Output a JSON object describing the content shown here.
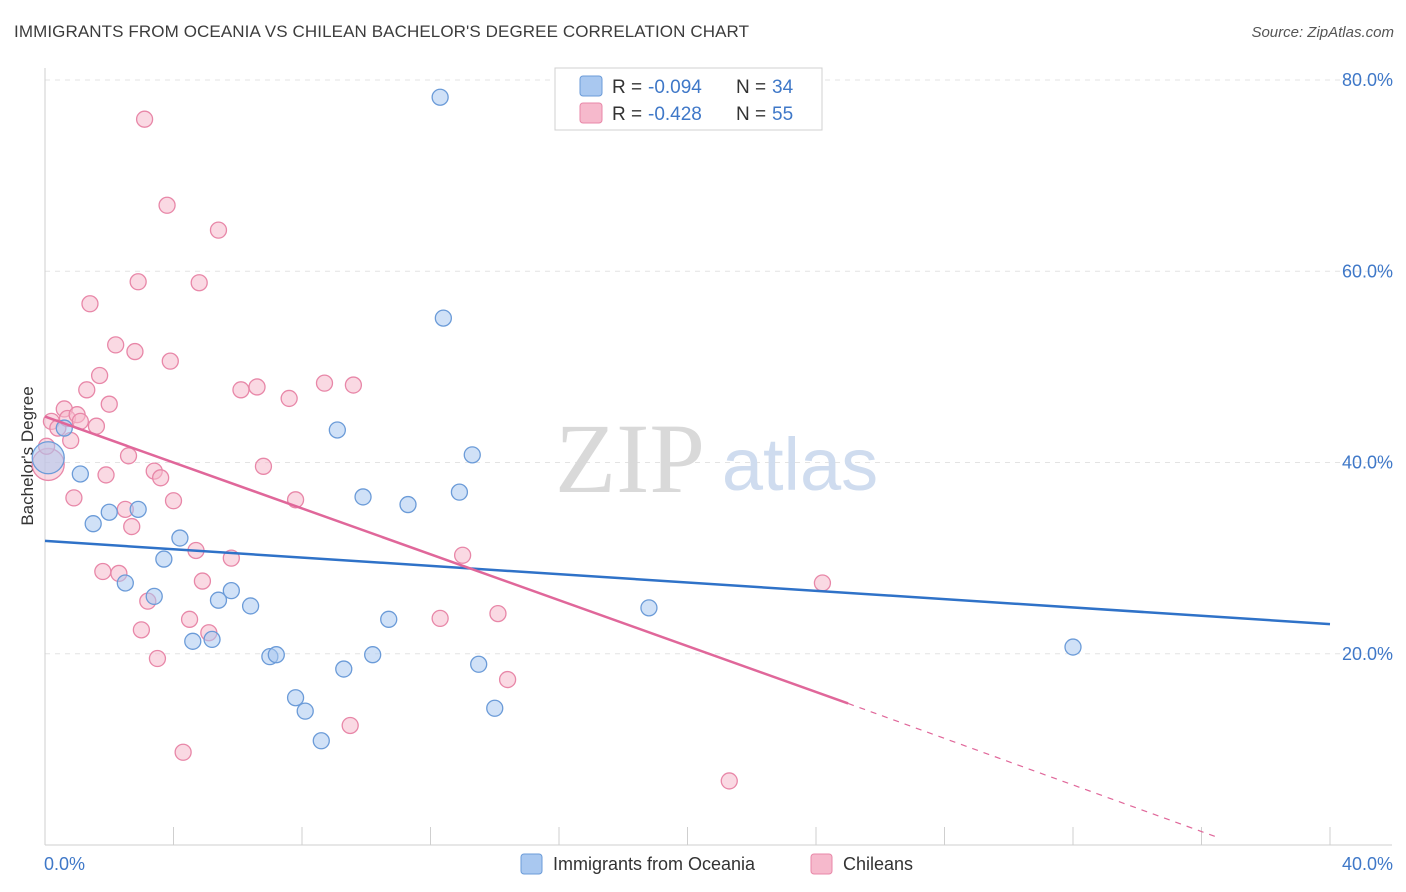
{
  "title": "IMMIGRANTS FROM OCEANIA VS CHILEAN BACHELOR'S DEGREE CORRELATION CHART",
  "source": "Source: ZipAtlas.com",
  "watermark": {
    "zip": "ZIP",
    "atlas": "atlas"
  },
  "colors": {
    "blue_fill": "#a9c8f0",
    "blue_stroke": "#6b9bd8",
    "blue_line": "#2f72c8",
    "pink_fill": "#f6b9cc",
    "pink_stroke": "#e887a8",
    "pink_line": "#e0679a",
    "accent_text": "#3f78c8"
  },
  "legend": {
    "rows": [
      {
        "r_label": "R =",
        "r_value": "-0.094",
        "n_label": "N =",
        "n_value": "34"
      },
      {
        "r_label": "R =",
        "r_value": "-0.428",
        "n_label": "N =",
        "n_value": "55"
      }
    ]
  },
  "bottom_legend": [
    "Immigrants from Oceania",
    "Chileans"
  ],
  "chart_data": {
    "type": "scatter",
    "title": "IMMIGRANTS FROM OCEANIA VS CHILEAN BACHELOR'S DEGREE CORRELATION CHART",
    "xlabel": "",
    "ylabel": "Bachelor's Degree",
    "xlim": [
      0,
      40
    ],
    "ylim": [
      0,
      80
    ],
    "x_tick_labels": [
      "0.0%",
      "40.0%"
    ],
    "y_tick_labels": [
      "20.0%",
      "40.0%",
      "60.0%",
      "80.0%"
    ],
    "y_ticks": [
      20,
      40,
      60,
      80
    ],
    "grid": true,
    "legend_position": "top-center",
    "series": [
      {
        "name": "Immigrants from Oceania",
        "r": -0.094,
        "n": 34,
        "trend": {
          "x": [
            0,
            40
          ],
          "y": [
            31.8,
            23.1
          ]
        },
        "points": [
          [
            0.1,
            40.5
          ],
          [
            0.6,
            43.6
          ],
          [
            1.1,
            38.8
          ],
          [
            1.5,
            33.6
          ],
          [
            2.0,
            34.8
          ],
          [
            2.5,
            27.4
          ],
          [
            2.9,
            35.1
          ],
          [
            3.4,
            26.0
          ],
          [
            3.7,
            29.9
          ],
          [
            4.2,
            32.1
          ],
          [
            4.6,
            21.3
          ],
          [
            5.2,
            21.5
          ],
          [
            5.4,
            25.6
          ],
          [
            5.8,
            26.6
          ],
          [
            6.4,
            25.0
          ],
          [
            7.0,
            19.7
          ],
          [
            7.2,
            19.9
          ],
          [
            7.8,
            15.4
          ],
          [
            8.1,
            14.0
          ],
          [
            8.6,
            10.9
          ],
          [
            9.1,
            43.4
          ],
          [
            9.3,
            18.4
          ],
          [
            9.9,
            36.4
          ],
          [
            10.2,
            19.9
          ],
          [
            10.7,
            23.6
          ],
          [
            11.3,
            35.6
          ],
          [
            12.3,
            78.2
          ],
          [
            12.4,
            55.1
          ],
          [
            12.9,
            36.9
          ],
          [
            13.3,
            40.8
          ],
          [
            13.5,
            18.9
          ],
          [
            14.0,
            14.3
          ],
          [
            18.8,
            24.8
          ],
          [
            32.0,
            20.7
          ]
        ]
      },
      {
        "name": "Chileans",
        "r": -0.428,
        "n": 55,
        "trend": {
          "x": [
            0,
            25
          ],
          "y": [
            44.8,
            14.8
          ]
        },
        "trend_dashed": {
          "x": [
            25,
            36.5
          ],
          "y": [
            14.8,
            0.8
          ]
        },
        "points": [
          [
            0.1,
            39.8
          ],
          [
            0.2,
            44.3
          ],
          [
            0.4,
            43.6
          ],
          [
            0.6,
            45.6
          ],
          [
            0.7,
            44.6
          ],
          [
            0.8,
            42.3
          ],
          [
            0.9,
            36.3
          ],
          [
            1.0,
            45.0
          ],
          [
            1.1,
            44.3
          ],
          [
            1.3,
            47.6
          ],
          [
            1.4,
            56.6
          ],
          [
            1.6,
            43.8
          ],
          [
            1.7,
            49.1
          ],
          [
            1.8,
            28.6
          ],
          [
            1.9,
            38.7
          ],
          [
            2.0,
            46.1
          ],
          [
            2.2,
            52.3
          ],
          [
            2.3,
            28.4
          ],
          [
            2.5,
            35.1
          ],
          [
            2.6,
            40.7
          ],
          [
            2.7,
            33.3
          ],
          [
            2.8,
            51.6
          ],
          [
            2.9,
            58.9
          ],
          [
            3.0,
            22.5
          ],
          [
            3.1,
            75.9
          ],
          [
            3.2,
            25.5
          ],
          [
            3.4,
            39.1
          ],
          [
            3.5,
            19.5
          ],
          [
            3.6,
            38.4
          ],
          [
            3.8,
            66.9
          ],
          [
            3.9,
            50.6
          ],
          [
            4.0,
            36.0
          ],
          [
            4.3,
            9.7
          ],
          [
            4.5,
            23.6
          ],
          [
            4.7,
            30.8
          ],
          [
            4.8,
            58.8
          ],
          [
            4.9,
            27.6
          ],
          [
            5.1,
            22.2
          ],
          [
            5.4,
            64.3
          ],
          [
            5.8,
            30.0
          ],
          [
            6.1,
            47.6
          ],
          [
            6.6,
            47.9
          ],
          [
            6.8,
            39.6
          ],
          [
            7.6,
            46.7
          ],
          [
            7.8,
            36.1
          ],
          [
            8.7,
            48.3
          ],
          [
            9.5,
            12.5
          ],
          [
            9.6,
            48.1
          ],
          [
            12.3,
            23.7
          ],
          [
            13.0,
            30.3
          ],
          [
            14.1,
            24.2
          ],
          [
            14.4,
            17.3
          ],
          [
            21.3,
            6.7
          ],
          [
            24.2,
            27.4
          ],
          [
            0.05,
            41.7
          ]
        ]
      }
    ]
  }
}
